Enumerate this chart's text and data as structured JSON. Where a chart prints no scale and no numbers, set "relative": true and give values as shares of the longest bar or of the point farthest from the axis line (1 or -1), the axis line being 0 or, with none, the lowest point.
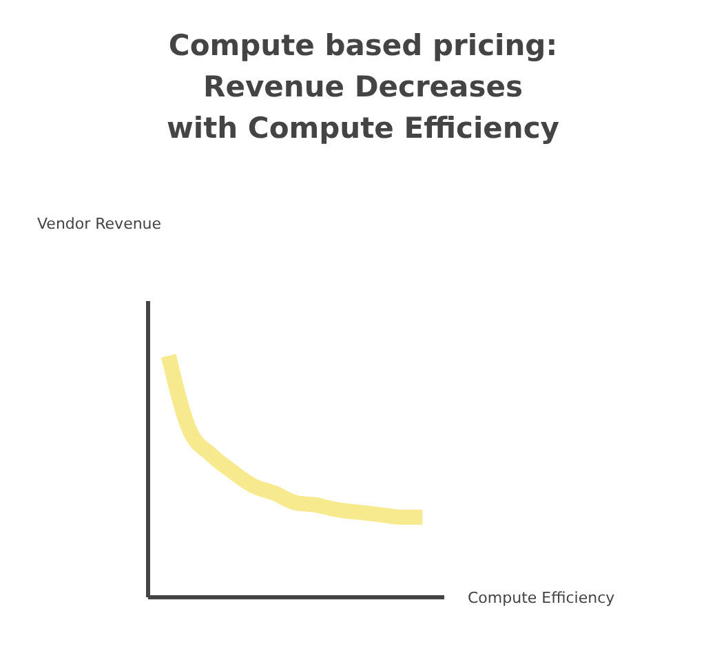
{
  "chart_data": {
    "type": "line",
    "title": "Compute based pricing:\nRevenue Decreases\nwith Compute Efficiency",
    "xlabel": "Compute Efficiency",
    "annotations": [
      "Vendor Revenue"
    ],
    "relative": true,
    "categories": [
      null,
      null,
      null,
      null,
      null,
      null,
      null,
      null,
      null,
      null,
      null,
      null,
      null
    ],
    "series": [
      {
        "color": "#f7e98e",
        "values": [
          1,
          0.69,
          0.59,
          0.52,
          0.46,
          0.43,
          0.39,
          0.38,
          0.36,
          0.35,
          0.34,
          0.33,
          0.33
        ]
      }
    ]
  }
}
